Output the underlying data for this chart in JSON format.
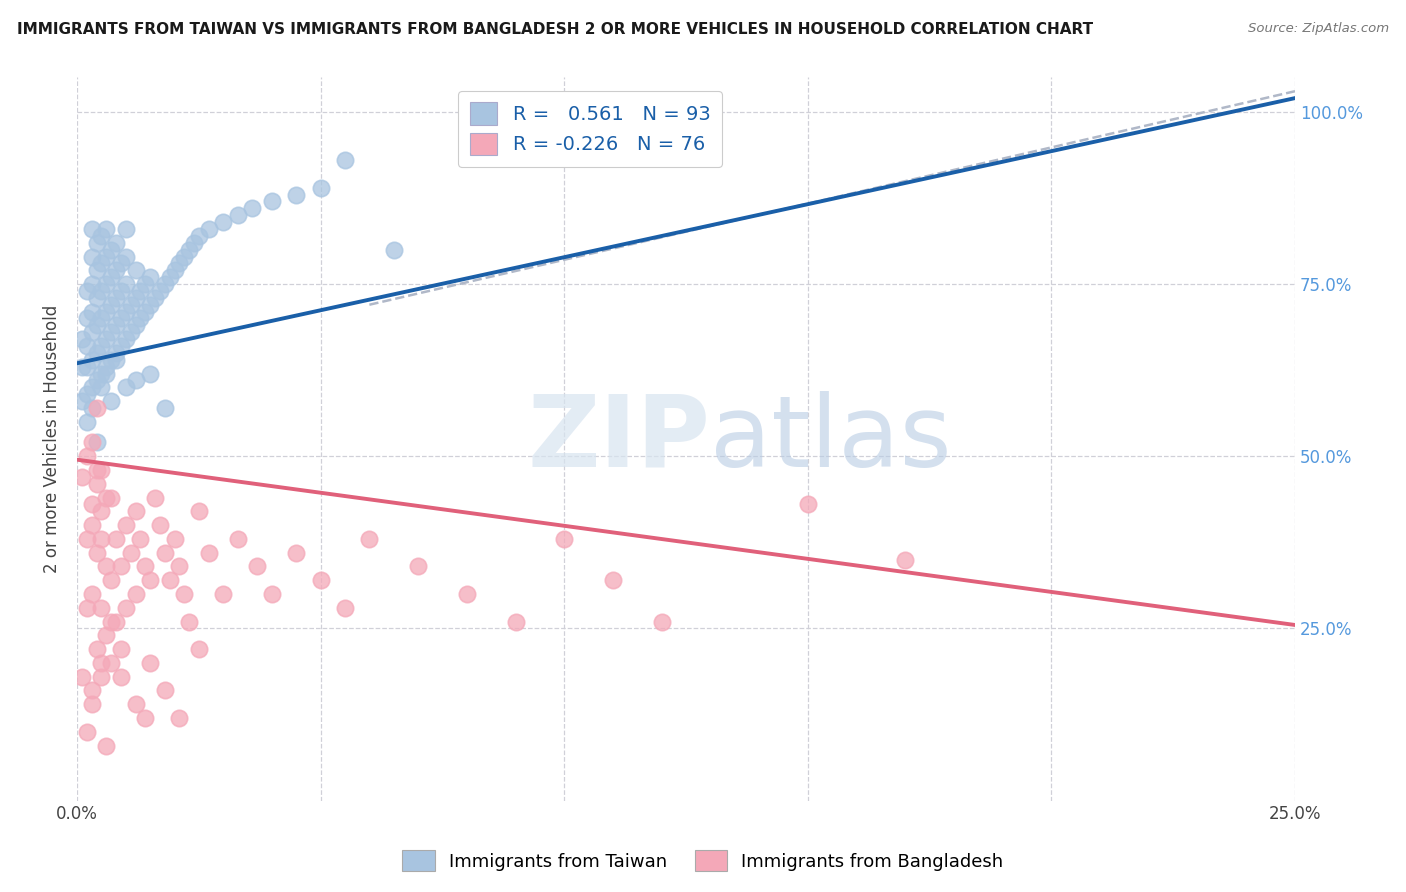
{
  "title": "IMMIGRANTS FROM TAIWAN VS IMMIGRANTS FROM BANGLADESH 2 OR MORE VEHICLES IN HOUSEHOLD CORRELATION CHART",
  "source": "Source: ZipAtlas.com",
  "ylabel": "2 or more Vehicles in Household",
  "taiwan_R": 0.561,
  "taiwan_N": 93,
  "bangladesh_R": -0.226,
  "bangladesh_N": 76,
  "taiwan_color": "#a8c4e0",
  "taiwan_line_color": "#1a5fa8",
  "bangladesh_color": "#f4a8b8",
  "bangladesh_line_color": "#e0607a",
  "dashed_line_color": "#b0b8c8",
  "taiwan_line_x0": 0.0,
  "taiwan_line_y0": 0.635,
  "taiwan_line_x1": 0.25,
  "taiwan_line_y1": 1.02,
  "bangladesh_line_x0": 0.0,
  "bangladesh_line_y0": 0.495,
  "bangladesh_line_x1": 0.25,
  "bangladesh_line_y1": 0.255,
  "dashed_line_x0": 0.06,
  "dashed_line_y0": 0.72,
  "dashed_line_x1": 0.25,
  "dashed_line_y1": 1.03,
  "taiwan_scatter_x": [
    0.001,
    0.001,
    0.001,
    0.002,
    0.002,
    0.002,
    0.002,
    0.002,
    0.003,
    0.003,
    0.003,
    0.003,
    0.003,
    0.003,
    0.003,
    0.004,
    0.004,
    0.004,
    0.004,
    0.004,
    0.004,
    0.005,
    0.005,
    0.005,
    0.005,
    0.005,
    0.005,
    0.006,
    0.006,
    0.006,
    0.006,
    0.006,
    0.006,
    0.007,
    0.007,
    0.007,
    0.007,
    0.007,
    0.008,
    0.008,
    0.008,
    0.008,
    0.008,
    0.009,
    0.009,
    0.009,
    0.009,
    0.01,
    0.01,
    0.01,
    0.01,
    0.01,
    0.011,
    0.011,
    0.012,
    0.012,
    0.012,
    0.013,
    0.013,
    0.014,
    0.014,
    0.015,
    0.015,
    0.016,
    0.017,
    0.018,
    0.019,
    0.02,
    0.021,
    0.022,
    0.023,
    0.024,
    0.025,
    0.027,
    0.03,
    0.033,
    0.036,
    0.04,
    0.045,
    0.05,
    0.002,
    0.003,
    0.004,
    0.005,
    0.006,
    0.007,
    0.008,
    0.01,
    0.012,
    0.015,
    0.018,
    0.055,
    0.065
  ],
  "taiwan_scatter_y": [
    0.58,
    0.63,
    0.67,
    0.59,
    0.63,
    0.66,
    0.7,
    0.74,
    0.6,
    0.64,
    0.68,
    0.71,
    0.75,
    0.79,
    0.83,
    0.61,
    0.65,
    0.69,
    0.73,
    0.77,
    0.81,
    0.62,
    0.66,
    0.7,
    0.74,
    0.78,
    0.82,
    0.63,
    0.67,
    0.71,
    0.75,
    0.79,
    0.83,
    0.64,
    0.68,
    0.72,
    0.76,
    0.8,
    0.65,
    0.69,
    0.73,
    0.77,
    0.81,
    0.66,
    0.7,
    0.74,
    0.78,
    0.67,
    0.71,
    0.75,
    0.79,
    0.83,
    0.68,
    0.72,
    0.69,
    0.73,
    0.77,
    0.7,
    0.74,
    0.71,
    0.75,
    0.72,
    0.76,
    0.73,
    0.74,
    0.75,
    0.76,
    0.77,
    0.78,
    0.79,
    0.8,
    0.81,
    0.82,
    0.83,
    0.84,
    0.85,
    0.86,
    0.87,
    0.88,
    0.89,
    0.55,
    0.57,
    0.52,
    0.6,
    0.62,
    0.58,
    0.64,
    0.6,
    0.61,
    0.62,
    0.57,
    0.93,
    0.8
  ],
  "bangladesh_scatter_x": [
    0.001,
    0.001,
    0.002,
    0.002,
    0.002,
    0.002,
    0.003,
    0.003,
    0.003,
    0.003,
    0.003,
    0.004,
    0.004,
    0.004,
    0.004,
    0.004,
    0.005,
    0.005,
    0.005,
    0.005,
    0.005,
    0.006,
    0.006,
    0.006,
    0.007,
    0.007,
    0.007,
    0.008,
    0.008,
    0.009,
    0.009,
    0.01,
    0.01,
    0.011,
    0.012,
    0.012,
    0.013,
    0.014,
    0.015,
    0.016,
    0.017,
    0.018,
    0.019,
    0.02,
    0.021,
    0.022,
    0.023,
    0.025,
    0.027,
    0.03,
    0.033,
    0.037,
    0.04,
    0.045,
    0.05,
    0.055,
    0.06,
    0.07,
    0.08,
    0.09,
    0.1,
    0.11,
    0.12,
    0.003,
    0.005,
    0.007,
    0.009,
    0.012,
    0.015,
    0.018,
    0.021,
    0.025,
    0.15,
    0.17,
    0.006,
    0.014
  ],
  "bangladesh_scatter_y": [
    0.18,
    0.47,
    0.1,
    0.28,
    0.38,
    0.5,
    0.16,
    0.3,
    0.4,
    0.52,
    0.43,
    0.22,
    0.36,
    0.46,
    0.57,
    0.48,
    0.18,
    0.28,
    0.38,
    0.48,
    0.42,
    0.24,
    0.34,
    0.44,
    0.2,
    0.32,
    0.44,
    0.26,
    0.38,
    0.22,
    0.34,
    0.28,
    0.4,
    0.36,
    0.3,
    0.42,
    0.38,
    0.34,
    0.32,
    0.44,
    0.4,
    0.36,
    0.32,
    0.38,
    0.34,
    0.3,
    0.26,
    0.42,
    0.36,
    0.3,
    0.38,
    0.34,
    0.3,
    0.36,
    0.32,
    0.28,
    0.38,
    0.34,
    0.3,
    0.26,
    0.38,
    0.32,
    0.26,
    0.14,
    0.2,
    0.26,
    0.18,
    0.14,
    0.2,
    0.16,
    0.12,
    0.22,
    0.43,
    0.35,
    0.08,
    0.12
  ],
  "xlim": [
    0.0,
    0.25
  ],
  "ylim": [
    0.0,
    1.05
  ],
  "figsize": [
    14.06,
    8.92
  ],
  "dpi": 100
}
